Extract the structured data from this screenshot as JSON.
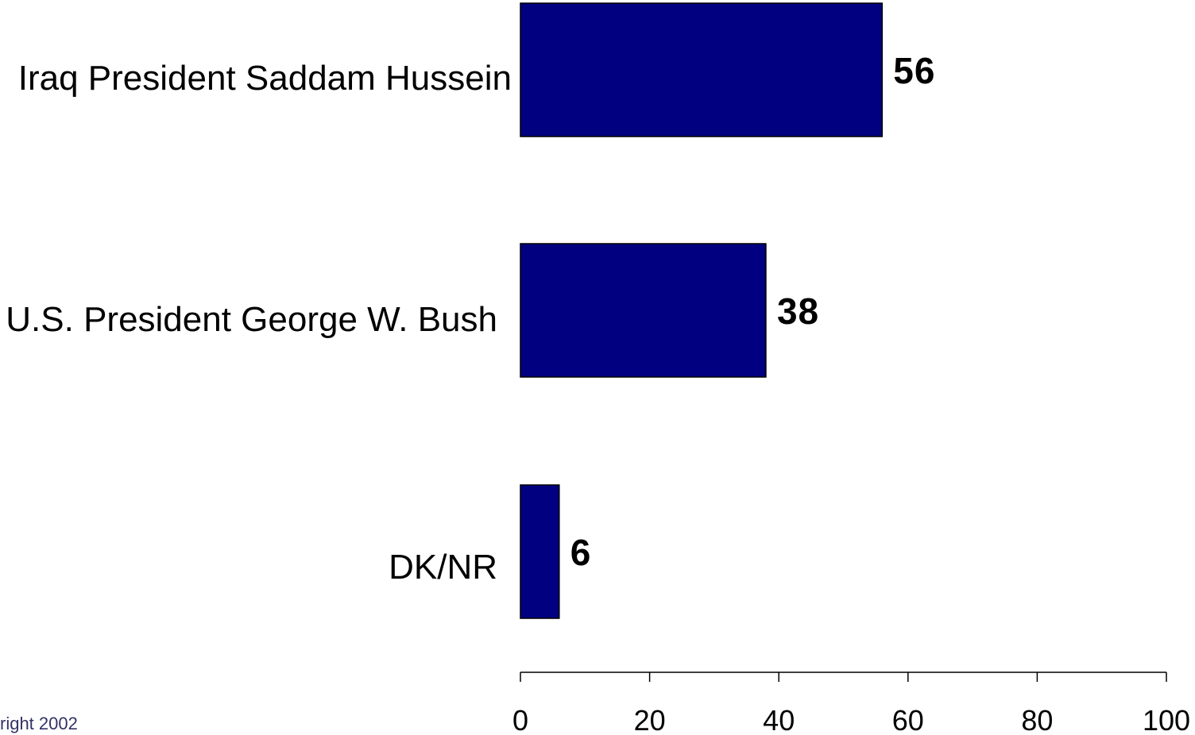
{
  "chart_data": {
    "type": "bar",
    "orientation": "horizontal",
    "categories": [
      "Iraq President Saddam Hussein",
      "U.S. President George W. Bush",
      "DK/NR"
    ],
    "values": [
      56,
      38,
      6
    ],
    "value_labels": [
      "56",
      "38",
      "6"
    ],
    "xlim": [
      0,
      100
    ],
    "x_ticks": [
      0,
      20,
      40,
      60,
      80,
      100
    ],
    "x_tick_labels": [
      "0",
      "20",
      "40",
      "60",
      "80",
      "100"
    ],
    "bar_color": "#000080",
    "bar_edge_color": "#000000",
    "grid": false
  },
  "footer": {
    "text": "right 2002"
  }
}
